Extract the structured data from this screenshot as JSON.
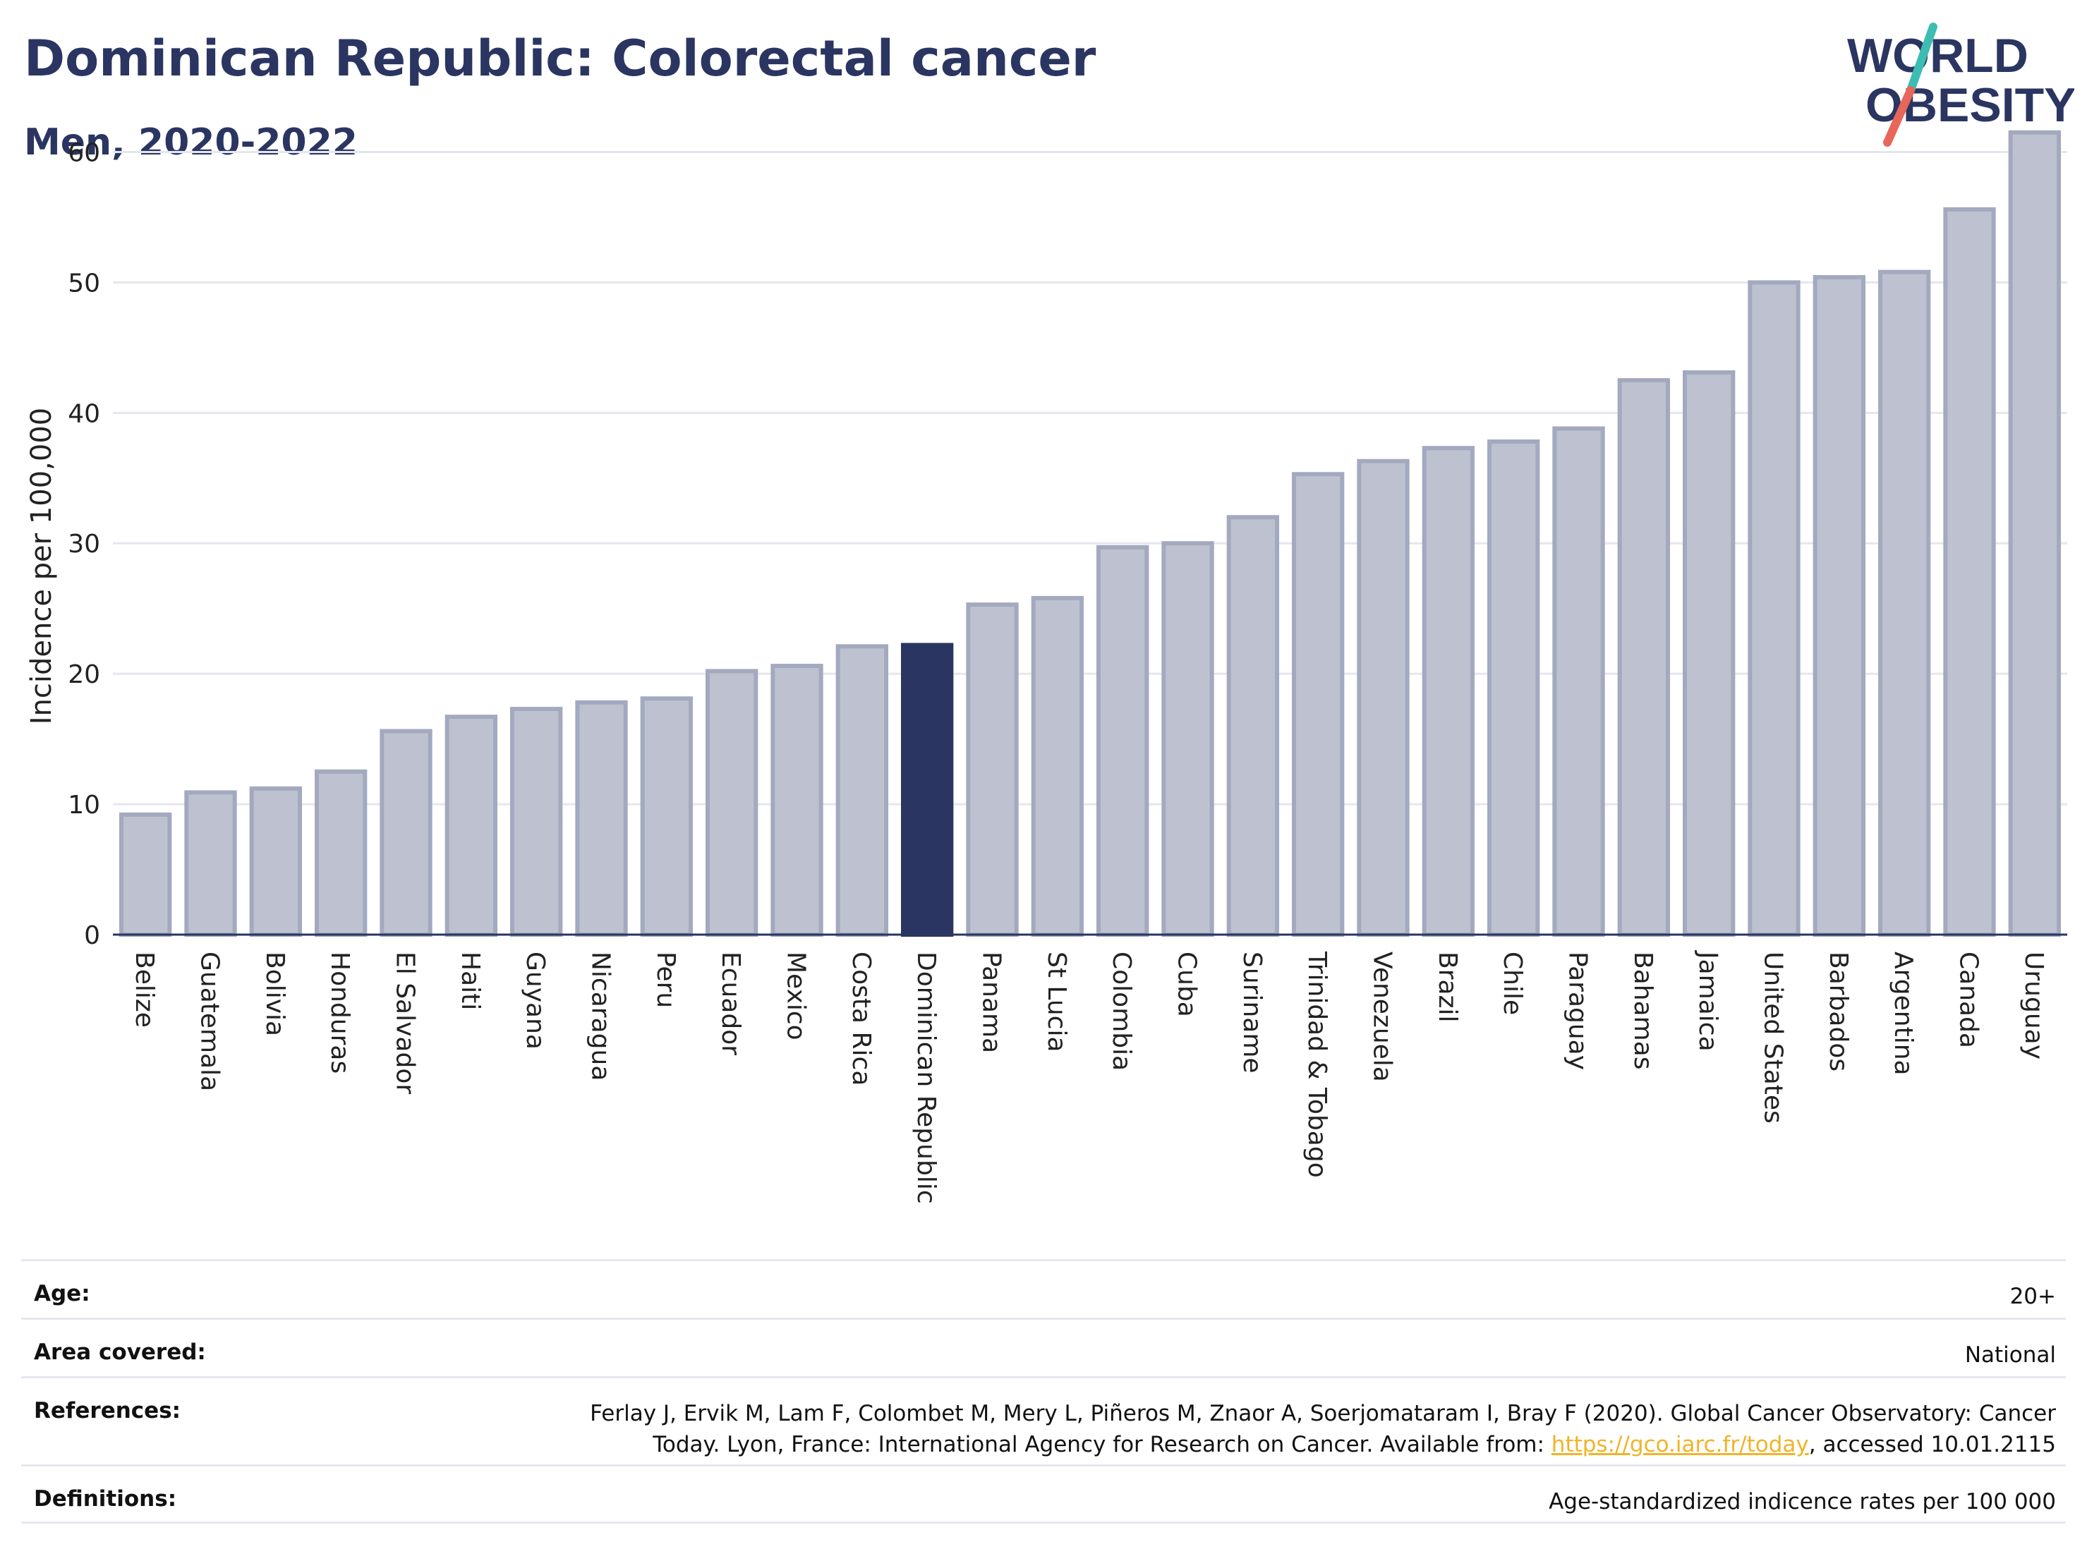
{
  "header": {
    "title": "Dominican Republic: Colorectal cancer",
    "subtitle": "Men, 2020-2022"
  },
  "logo": {
    "line1": "WORLD",
    "line2": "OBESITY",
    "colors": {
      "text": "#2b3561",
      "slash_top": "#3dbdb1",
      "slash_bottom": "#e8665a"
    }
  },
  "chart_data": {
    "type": "bar",
    "title": "",
    "xlabel": "",
    "ylabel": "Incidence per 100,000",
    "ylim": [
      0,
      63
    ],
    "yticks": [
      0,
      10,
      20,
      30,
      40,
      50,
      60
    ],
    "grid": true,
    "highlight": "Dominican Republic",
    "colors": {
      "bar": "#bec2d0",
      "bar_border": "#a3a9be",
      "highlight": "#2b3561",
      "grid": "#e5e7ee",
      "axis": "#2b3561"
    },
    "categories": [
      "Belize",
      "Guatemala",
      "Bolivia",
      "Honduras",
      "El Salvador",
      "Haiti",
      "Guyana",
      "Nicaragua",
      "Peru",
      "Ecuador",
      "Mexico",
      "Costa Rica",
      "Dominican Republic",
      "Panama",
      "St Lucia",
      "Colombia",
      "Cuba",
      "Suriname",
      "Trinidad & Tobago",
      "Venezuela",
      "Brazil",
      "Chile",
      "Paraguay",
      "Bahamas",
      "Jamaica",
      "United States",
      "Barbados",
      "Argentina",
      "Canada",
      "Uruguay"
    ],
    "values": [
      9.2,
      10.9,
      11.2,
      12.5,
      15.6,
      16.7,
      17.3,
      17.8,
      18.1,
      20.2,
      20.6,
      22.1,
      22.2,
      25.3,
      25.8,
      29.7,
      30.0,
      32.0,
      35.3,
      36.3,
      37.3,
      37.8,
      38.8,
      42.5,
      43.1,
      50.0,
      50.4,
      50.8,
      55.6,
      61.5
    ]
  },
  "info_table": {
    "rows": [
      {
        "label": "Age:",
        "value": "20+"
      },
      {
        "label": "Area covered:",
        "value": "National"
      },
      {
        "label": "References:",
        "value_line1": "Ferlay J, Ervik M, Lam F, Colombet M, Mery L, Piñeros M, Znaor A, Soerjomataram I, Bray F (2020). Global Cancer Observatory: Cancer",
        "value_line2_pre": "Today. Lyon, France: International Agency for Research on Cancer. Available from: ",
        "value_link": "https://gco.iarc.fr/today",
        "value_line2_post": ", accessed 10.01.2115"
      },
      {
        "label": "Definitions:",
        "value": "Age-standardized indicence rates per 100 000"
      }
    ]
  }
}
